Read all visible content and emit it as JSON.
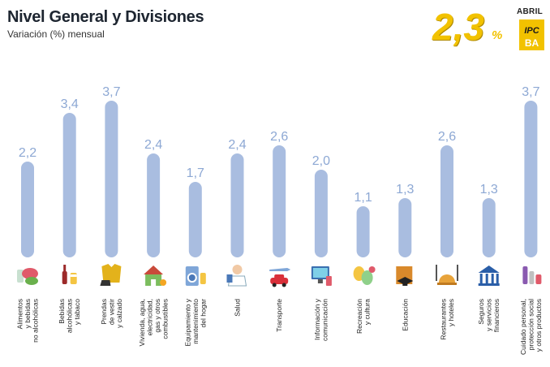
{
  "title": "Nivel General y Divisiones",
  "subtitle": "Variación (%) mensual",
  "headline": {
    "value": "2,3",
    "unit": "%",
    "month": "ABRIL",
    "logo_top": "IPC",
    "logo_bottom": "BA",
    "logo_color": "#f2c200"
  },
  "colors": {
    "bar": "#a9bde0",
    "value_label": "#8da8d4"
  },
  "chart_data": {
    "type": "bar",
    "title": "Nivel General y Divisiones",
    "ylabel": "Variación (%) mensual",
    "ylim": [
      0,
      4.0
    ],
    "grid": false,
    "categories": [
      [
        "Alimentos",
        "y bebidas",
        "no alcohólicas"
      ],
      [
        "Bebidas",
        "alcohólicas",
        "y tabaco"
      ],
      [
        "Prendas",
        "de vestir",
        "y calzado"
      ],
      [
        "Vivienda, agua,",
        "electricidad,",
        "gas y otros",
        "combustibles"
      ],
      [
        "Equipamiento y",
        "mantenimiento",
        "del hogar"
      ],
      [
        "Salud"
      ],
      [
        "Transporte"
      ],
      [
        "Información y",
        "comunicación"
      ],
      [
        "Recreación",
        "y cultura"
      ],
      [
        "Educación"
      ],
      [
        "Restaurantes",
        "y hoteles"
      ],
      [
        "Seguros",
        "y servicios",
        "financieros"
      ],
      [
        "Cuidado personal,",
        "protección social",
        "y otros productos"
      ]
    ],
    "values": [
      2.2,
      3.4,
      3.7,
      2.4,
      1.7,
      2.4,
      2.6,
      2.0,
      1.1,
      1.3,
      2.6,
      1.3,
      3.7
    ],
    "value_labels": [
      "2,2",
      "3,4",
      "3,7",
      "2,4",
      "1,7",
      "2,4",
      "2,6",
      "2,0",
      "1,1",
      "1,3",
      "2,6",
      "1,3",
      "3,7"
    ],
    "icons": [
      "food-icon",
      "drinks-icon",
      "clothing-icon",
      "house-icon",
      "washing-machine-icon",
      "doctor-icon",
      "car-plane-icon",
      "computer-icon",
      "theatre-masks-icon",
      "graduation-cap-icon",
      "cutlery-icon",
      "bank-icon",
      "beauty-products-icon"
    ]
  }
}
